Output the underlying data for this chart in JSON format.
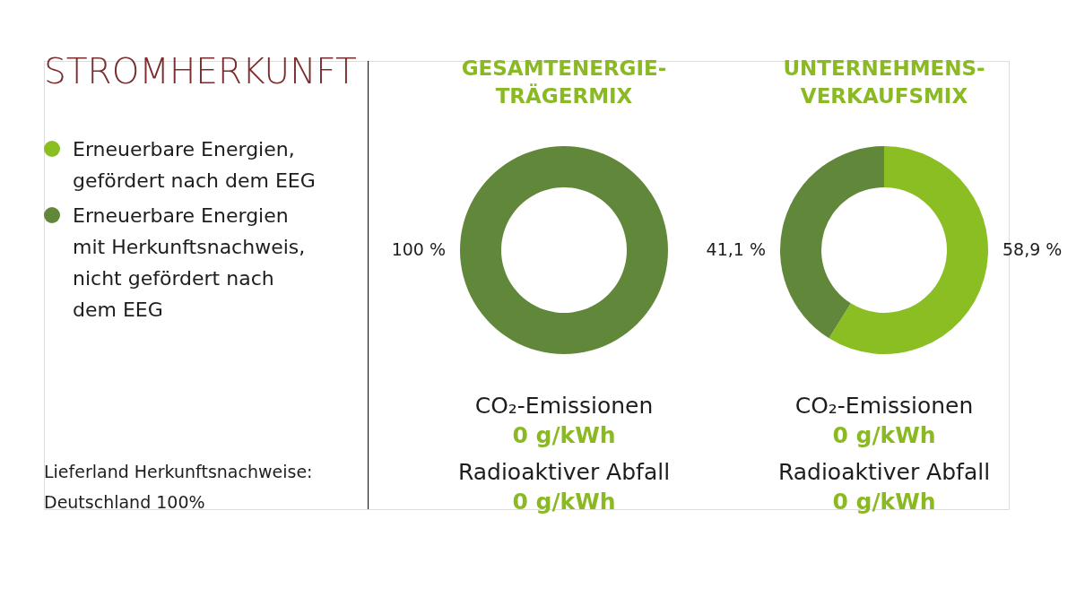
{
  "chart_data": [
    {
      "type": "other",
      "title": "STROMHERKUNFT",
      "annotations": [
        "Lieferland Herkunftsnachweise: Deutschland 100%"
      ]
    },
    {
      "type": "donut",
      "categories": [
        "Erneuerbare Energien, gefördert nach dem EEG",
        "Erneuerbare Energien mit Herkunftsnachweis, nicht gefördert nach dem EEG"
      ],
      "colors": [
        "#8bbe22",
        "#61883a"
      ],
      "legend": "left",
      "series": [
        {
          "name": "GESAMTENERGIE-TRÄGERMIX",
          "values": [
            0,
            100
          ],
          "value_labels": [
            null,
            "100 %"
          ]
        },
        {
          "name": "UNTERNEHMENS-VERKAUFSMIX",
          "values": [
            58.9,
            41.1
          ],
          "value_labels": [
            "58,9 %",
            "41,1 %"
          ]
        }
      ],
      "annotations": [
        "CO₂-Emissionen",
        "0 g/kWh",
        "Radioaktiver Abfall",
        "0 g/kWh",
        "CO₂-Emissionen",
        "0 g/kWh",
        "Radioaktiver Abfall",
        "0 g/kWh"
      ]
    }
  ]
}
